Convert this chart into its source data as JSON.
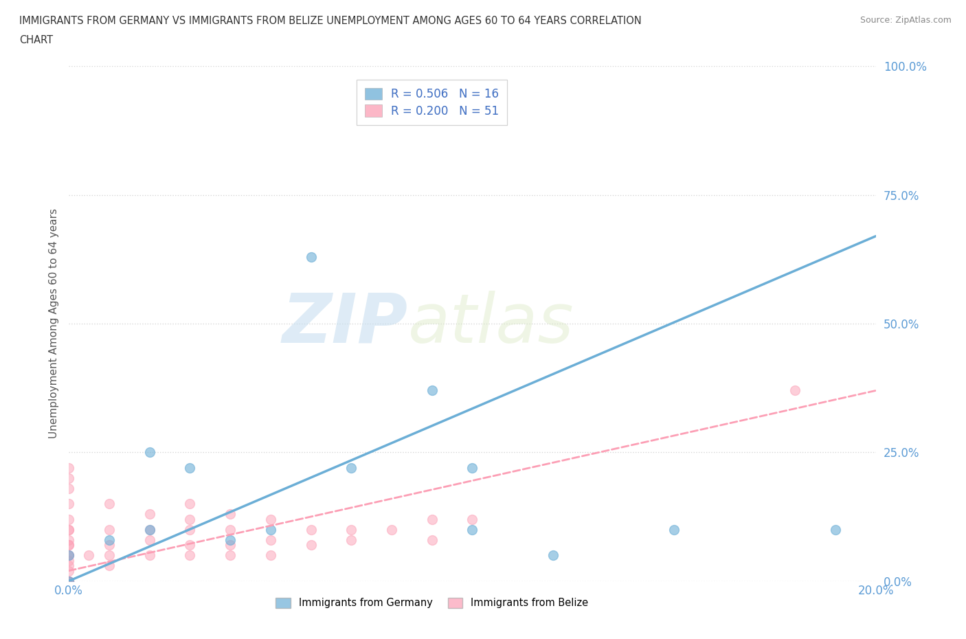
{
  "title_line1": "IMMIGRANTS FROM GERMANY VS IMMIGRANTS FROM BELIZE UNEMPLOYMENT AMONG AGES 60 TO 64 YEARS CORRELATION",
  "title_line2": "CHART",
  "source": "Source: ZipAtlas.com",
  "ylabel": "Unemployment Among Ages 60 to 64 years",
  "xlim": [
    0.0,
    0.2
  ],
  "ylim": [
    0.0,
    1.0
  ],
  "xticks": [
    0.0,
    0.05,
    0.1,
    0.15,
    0.2
  ],
  "yticks": [
    0.0,
    0.25,
    0.5,
    0.75,
    1.0
  ],
  "ytick_labels": [
    "0.0%",
    "25.0%",
    "50.0%",
    "75.0%",
    "100.0%"
  ],
  "germany_color": "#6baed6",
  "belize_color": "#fc9fb5",
  "germany_R": 0.506,
  "germany_N": 16,
  "belize_R": 0.2,
  "belize_N": 51,
  "watermark_zip": "ZIP",
  "watermark_atlas": "atlas",
  "germany_x": [
    0.0,
    0.0,
    0.01,
    0.02,
    0.02,
    0.03,
    0.04,
    0.05,
    0.06,
    0.07,
    0.09,
    0.1,
    0.1,
    0.12,
    0.15,
    0.19
  ],
  "germany_y": [
    0.0,
    0.05,
    0.08,
    0.1,
    0.25,
    0.22,
    0.08,
    0.1,
    0.63,
    0.22,
    0.37,
    0.1,
    0.22,
    0.05,
    0.1,
    0.1
  ],
  "belize_x": [
    0.0,
    0.0,
    0.0,
    0.0,
    0.0,
    0.0,
    0.0,
    0.0,
    0.0,
    0.0,
    0.0,
    0.0,
    0.0,
    0.0,
    0.0,
    0.0,
    0.0,
    0.0,
    0.0,
    0.0,
    0.005,
    0.01,
    0.01,
    0.01,
    0.01,
    0.01,
    0.02,
    0.02,
    0.02,
    0.02,
    0.03,
    0.03,
    0.03,
    0.03,
    0.03,
    0.04,
    0.04,
    0.04,
    0.04,
    0.05,
    0.05,
    0.05,
    0.06,
    0.06,
    0.07,
    0.07,
    0.08,
    0.09,
    0.09,
    0.1,
    0.18
  ],
  "belize_y": [
    0.0,
    0.0,
    0.0,
    0.0,
    0.0,
    0.02,
    0.03,
    0.04,
    0.05,
    0.07,
    0.08,
    0.1,
    0.12,
    0.15,
    0.18,
    0.2,
    0.22,
    0.05,
    0.07,
    0.1,
    0.05,
    0.03,
    0.05,
    0.07,
    0.1,
    0.15,
    0.05,
    0.08,
    0.1,
    0.13,
    0.05,
    0.07,
    0.1,
    0.12,
    0.15,
    0.05,
    0.07,
    0.1,
    0.13,
    0.05,
    0.08,
    0.12,
    0.07,
    0.1,
    0.08,
    0.1,
    0.1,
    0.08,
    0.12,
    0.12,
    0.37
  ],
  "germany_line_x": [
    0.0,
    0.2
  ],
  "germany_line_y": [
    0.0,
    0.67
  ],
  "belize_line_x": [
    0.0,
    0.2
  ],
  "belize_line_y": [
    0.02,
    0.37
  ],
  "legend_germany": "Immigrants from Germany",
  "legend_belize": "Immigrants from Belize",
  "background_color": "#ffffff",
  "grid_color": "#cccccc",
  "tick_color": "#5b9bd5",
  "title_color": "#333333",
  "legend_text_color": "#4472c4"
}
